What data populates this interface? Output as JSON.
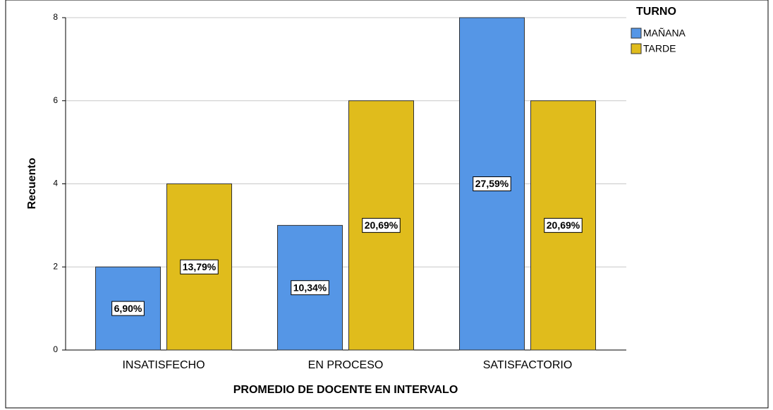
{
  "chart_data": {
    "type": "bar",
    "categories": [
      "INSATISFECHO",
      "EN PROCESO",
      "SATISFACTORIO"
    ],
    "series": [
      {
        "name": "MAÑANA",
        "color": "#5596e6",
        "values": [
          2,
          3,
          8
        ],
        "percent_labels": [
          "6,90%",
          "10,34%",
          "27,59%"
        ]
      },
      {
        "name": "TARDE",
        "color": "#e0bc1c",
        "values": [
          4,
          6,
          6
        ],
        "percent_labels": [
          "13,79%",
          "20,69%",
          "20,69%"
        ]
      }
    ],
    "xlabel": "PROMEDIO DE DOCENTE EN INTERVALO",
    "ylabel": "Recuento",
    "legend_title": "TURNO",
    "ylim": [
      0,
      8
    ],
    "yticks": [
      0,
      2,
      4,
      6,
      8
    ],
    "grid": true
  }
}
